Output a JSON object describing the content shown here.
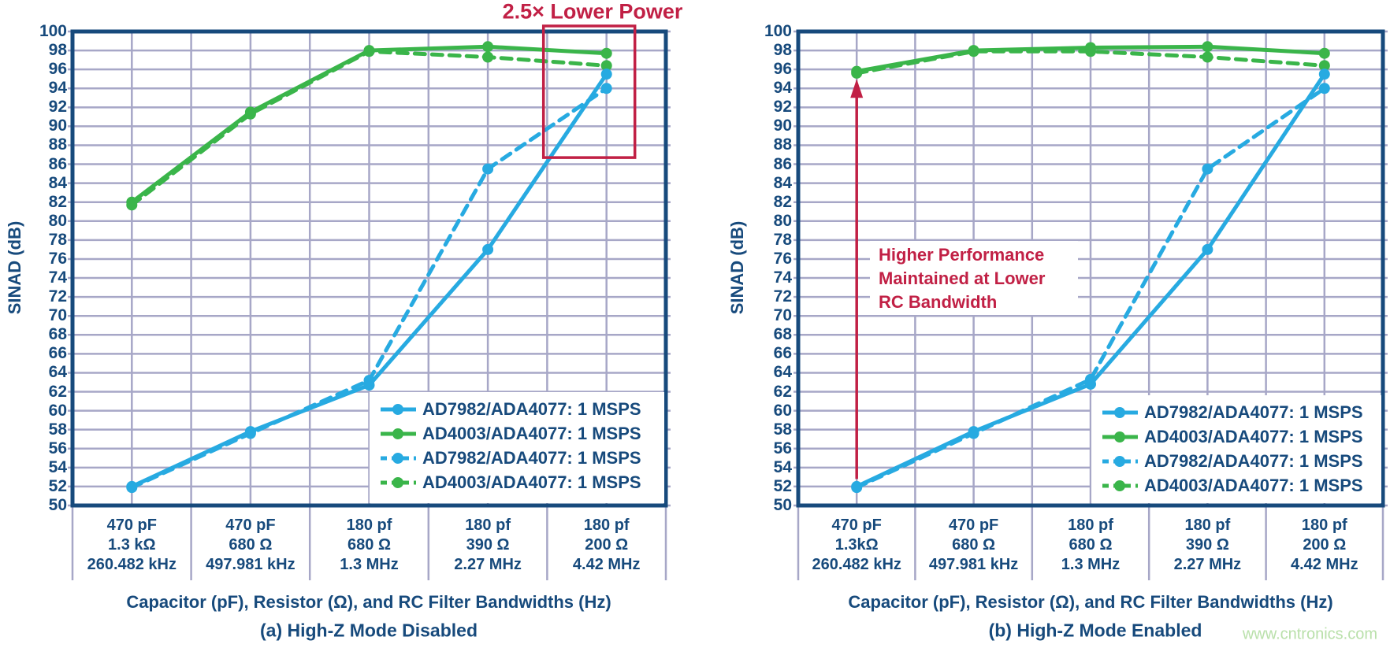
{
  "watermark": {
    "text": "www.cntronics.com",
    "color": "#b9e0aa"
  },
  "colors": {
    "navy": "#174a7c",
    "grid": "#a7a7c7",
    "cyan": "#27aae1",
    "green": "#3ab54a",
    "red": "#c12045",
    "background": "#ffffff"
  },
  "chart_data": [
    {
      "type": "line",
      "caption": "(a) High-Z Mode Disabled",
      "xlabel": "Capacitor (pF), Resistor (Ω), and RC Filter Bandwidths (Hz)",
      "ylabel": "SINAD (dB)",
      "ylim": [
        50,
        100
      ],
      "ytick_step": 2,
      "grid": true,
      "legend_position": "lower right",
      "categories": [
        [
          "470 pF",
          "1.3 kΩ",
          "260.482 kHz"
        ],
        [
          "470 pF",
          "680 Ω",
          "497.981 kHz"
        ],
        [
          "180 pf",
          "680 Ω",
          "1.3 MHz"
        ],
        [
          "180 pf",
          "390 Ω",
          "2.27 MHz"
        ],
        [
          "180 pf",
          "200 Ω",
          "4.42 MHz"
        ]
      ],
      "series": [
        {
          "name": "AD7982/ADA4077: 1 MSPS",
          "color": "cyan",
          "line": "solid",
          "values": [
            52.0,
            57.8,
            62.7,
            77.0,
            95.5
          ]
        },
        {
          "name": "AD4003/ADA4077: 1 MSPS",
          "color": "green",
          "line": "solid",
          "values": [
            82.0,
            91.5,
            98.0,
            98.4,
            97.7
          ]
        },
        {
          "name": "AD7982/ADA4077: 1 MSPS",
          "color": "cyan",
          "line": "dashed",
          "values": [
            51.9,
            57.6,
            63.2,
            85.5,
            94.0
          ]
        },
        {
          "name": "AD4003/ADA4077: 1 MSPS",
          "color": "green",
          "line": "dashed",
          "values": [
            81.7,
            91.3,
            97.9,
            97.3,
            96.4
          ]
        }
      ],
      "annotation": {
        "type": "box",
        "label": "2.5× Lower Power",
        "box_around_category": 5,
        "box_dB_bottom": 86.7
      }
    },
    {
      "type": "line",
      "caption": "(b) High-Z Mode Enabled",
      "xlabel": "Capacitor (pF), Resistor (Ω), and RC Filter Bandwidths (Hz)",
      "ylabel": "SINAD (dB)",
      "ylim": [
        50,
        100
      ],
      "ytick_step": 2,
      "grid": true,
      "legend_position": "lower right",
      "categories": [
        [
          "470 pF",
          "1.3kΩ",
          "260.482 kHz"
        ],
        [
          "470 pF",
          "680 Ω",
          "497.981 kHz"
        ],
        [
          "180 pf",
          "680 Ω",
          "1.3 MHz"
        ],
        [
          "180 pf",
          "390 Ω",
          "2.27 MHz"
        ],
        [
          "180 pf",
          "200 Ω",
          "4.42 MHz"
        ]
      ],
      "series": [
        {
          "name": "AD7982/ADA4077: 1 MSPS",
          "color": "cyan",
          "line": "solid",
          "values": [
            52.0,
            57.8,
            62.8,
            77.0,
            95.5
          ]
        },
        {
          "name": "AD4003/ADA4077: 1 MSPS",
          "color": "green",
          "line": "solid",
          "values": [
            95.8,
            98.0,
            98.3,
            98.4,
            97.7
          ]
        },
        {
          "name": "AD7982/ADA4077: 1 MSPS",
          "color": "cyan",
          "line": "dashed",
          "values": [
            51.9,
            57.6,
            63.3,
            85.5,
            94.0
          ]
        },
        {
          "name": "AD4003/ADA4077: 1 MSPS",
          "color": "green",
          "line": "dashed",
          "values": [
            95.6,
            97.9,
            97.9,
            97.3,
            96.4
          ]
        }
      ],
      "annotation": {
        "type": "arrow",
        "lines": [
          "Higher Performance",
          "Maintained at Lower",
          "RC Bandwidth"
        ],
        "arrow_at_category": 1,
        "arrow_dB_range": [
          52.8,
          95.0
        ]
      }
    }
  ]
}
